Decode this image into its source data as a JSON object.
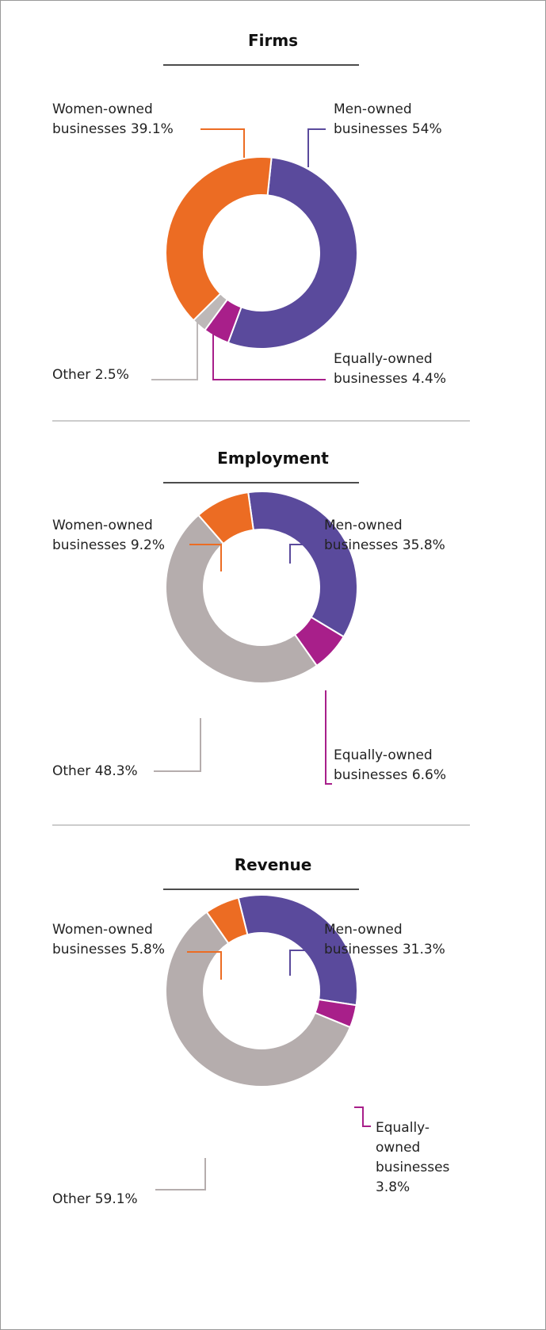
{
  "chart_data": [
    {
      "type": "pie",
      "title": "Firms",
      "categories": [
        "Men-owned businesses",
        "Equally-owned businesses",
        "Other",
        "Women-owned businesses"
      ],
      "values": [
        54,
        4.4,
        2.5,
        39.1
      ],
      "value_labels": [
        "54%",
        "4.4%",
        "2.5%",
        "39.1%"
      ],
      "colors": [
        "#5a4a9c",
        "#a81f8a",
        "#bdb8b8",
        "#ec6c23"
      ]
    },
    {
      "type": "pie",
      "title": "Employment",
      "categories": [
        "Men-owned businesses",
        "Equally-owned businesses",
        "Other",
        "Women-owned businesses"
      ],
      "values": [
        35.8,
        6.6,
        48.3,
        9.2
      ],
      "value_labels": [
        "35.8%",
        "6.6%",
        "48.3%",
        "9.2%"
      ],
      "colors": [
        "#5a4a9c",
        "#a81f8a",
        "#b5adad",
        "#ec6c23"
      ]
    },
    {
      "type": "pie",
      "title": "Revenue",
      "categories": [
        "Men-owned businesses",
        "Equally-owned businesses",
        "Other",
        "Women-owned businesses"
      ],
      "values": [
        31.3,
        3.8,
        59.1,
        5.8
      ],
      "value_labels": [
        "31.3%",
        "3.8%",
        "59.1%",
        "5.8%"
      ],
      "colors": [
        "#5a4a9c",
        "#a81f8a",
        "#b5adad",
        "#ec6c23"
      ]
    }
  ]
}
